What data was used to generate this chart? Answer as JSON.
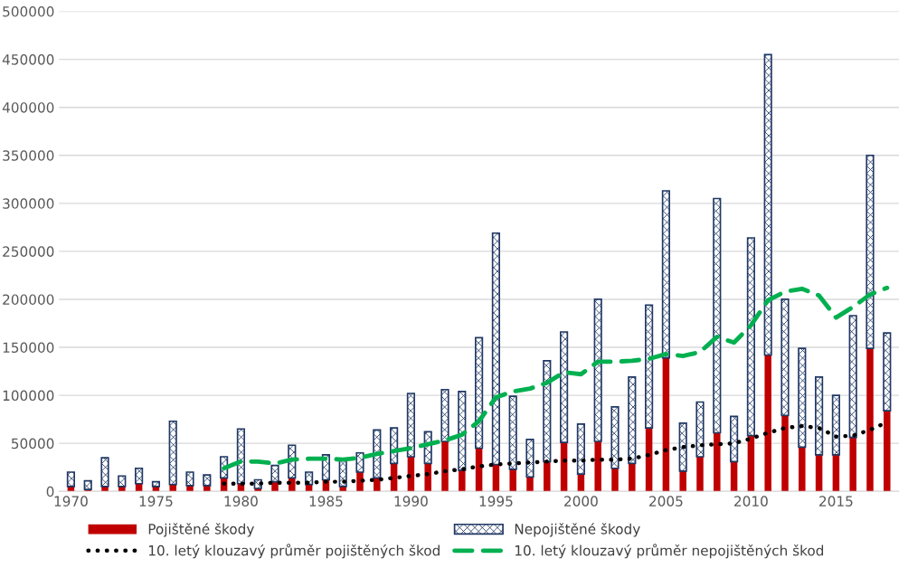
{
  "chart_data": {
    "type": "bar",
    "stacked": true,
    "x": [
      1970,
      1971,
      1972,
      1973,
      1974,
      1975,
      1976,
      1977,
      1978,
      1979,
      1980,
      1981,
      1982,
      1983,
      1984,
      1985,
      1986,
      1987,
      1988,
      1989,
      1990,
      1991,
      1992,
      1993,
      1994,
      1995,
      1996,
      1997,
      1998,
      1999,
      2000,
      2001,
      2002,
      2003,
      2004,
      2005,
      2006,
      2007,
      2008,
      2009,
      2010,
      2011,
      2012,
      2013,
      2014,
      2015,
      2016,
      2017,
      2018
    ],
    "series": [
      {
        "name": "Pojištěné škody",
        "color": "#c00000",
        "values": [
          5000,
          2000,
          5000,
          5000,
          8000,
          5000,
          7000,
          6000,
          6000,
          14000,
          8000,
          3000,
          10000,
          14000,
          7000,
          12000,
          5000,
          20000,
          14000,
          29000,
          36000,
          29000,
          52000,
          22000,
          45000,
          28000,
          23000,
          15000,
          31000,
          51000,
          18000,
          52000,
          24000,
          29000,
          66000,
          139000,
          21000,
          36000,
          61000,
          31000,
          58000,
          142000,
          79000,
          46000,
          38000,
          38000,
          56000,
          149000,
          84000
        ]
      },
      {
        "name": "Nepojištěné škody",
        "color": "#203864",
        "values": [
          15000,
          9000,
          30000,
          11000,
          16000,
          5000,
          66000,
          14000,
          11000,
          22000,
          57000,
          9000,
          17000,
          34000,
          13000,
          26000,
          29000,
          20000,
          50000,
          37000,
          66000,
          33000,
          54000,
          82000,
          115000,
          241000,
          76000,
          39000,
          105000,
          115000,
          52000,
          148000,
          64000,
          90000,
          128000,
          174000,
          50000,
          57000,
          244000,
          47000,
          206000,
          313000,
          121000,
          103000,
          81000,
          62000,
          127000,
          201000,
          81000
        ]
      },
      {
        "name": "10. letý klouzavý průměr pojištěných škod",
        "type": "line",
        "line_style": "dotted",
        "color": "#000000",
        "x": [
          1979,
          1980,
          1981,
          1982,
          1983,
          1984,
          1985,
          1986,
          1987,
          1988,
          1989,
          1990,
          1991,
          1992,
          1993,
          1994,
          1995,
          1996,
          1997,
          1998,
          1999,
          2000,
          2001,
          2002,
          2003,
          2004,
          2005,
          2006,
          2007,
          2008,
          2009,
          2010,
          2011,
          2012,
          2013,
          2014,
          2015,
          2016,
          2017,
          2018
        ],
        "values": [
          8000,
          8000,
          8000,
          9000,
          9000,
          9000,
          10000,
          10000,
          11000,
          12000,
          14000,
          16000,
          18000,
          21000,
          23000,
          26000,
          28000,
          29000,
          30000,
          31000,
          32000,
          32000,
          33000,
          33000,
          34000,
          38000,
          43000,
          46000,
          48000,
          49000,
          50000,
          55000,
          61000,
          66000,
          68000,
          66000,
          57000,
          58000,
          64000,
          72000
        ]
      },
      {
        "name": "10. letý klouzavý průměr nepojištěných škod",
        "type": "line",
        "line_style": "dashed",
        "color": "#00b050",
        "x": [
          1979,
          1980,
          1981,
          1982,
          1983,
          1984,
          1985,
          1986,
          1987,
          1988,
          1989,
          1990,
          1991,
          1992,
          1993,
          1994,
          1995,
          1996,
          1997,
          1998,
          1999,
          2000,
          2001,
          2002,
          2003,
          2004,
          2005,
          2006,
          2007,
          2008,
          2009,
          2010,
          2011,
          2012,
          2013,
          2014,
          2015,
          2016,
          2017,
          2018
        ],
        "values": [
          24000,
          31000,
          31000,
          29000,
          33000,
          34000,
          34000,
          33000,
          35000,
          39000,
          42000,
          45000,
          49000,
          53000,
          59000,
          73000,
          98000,
          104000,
          107000,
          113000,
          124000,
          122000,
          135000,
          135000,
          136000,
          138000,
          143000,
          141000,
          145000,
          161000,
          155000,
          173000,
          199000,
          208000,
          211000,
          204000,
          181000,
          192000,
          205000,
          212000
        ]
      }
    ],
    "xlim": [
      1969.3,
      2018.7
    ],
    "xticks": [
      1970,
      1975,
      1980,
      1985,
      1990,
      1995,
      2000,
      2005,
      2010,
      2015
    ],
    "ylim": [
      0,
      500000
    ],
    "yticks": [
      0,
      50000,
      100000,
      150000,
      200000,
      250000,
      300000,
      350000,
      400000,
      450000,
      500000
    ],
    "grid": "y",
    "legend": "bottom"
  }
}
